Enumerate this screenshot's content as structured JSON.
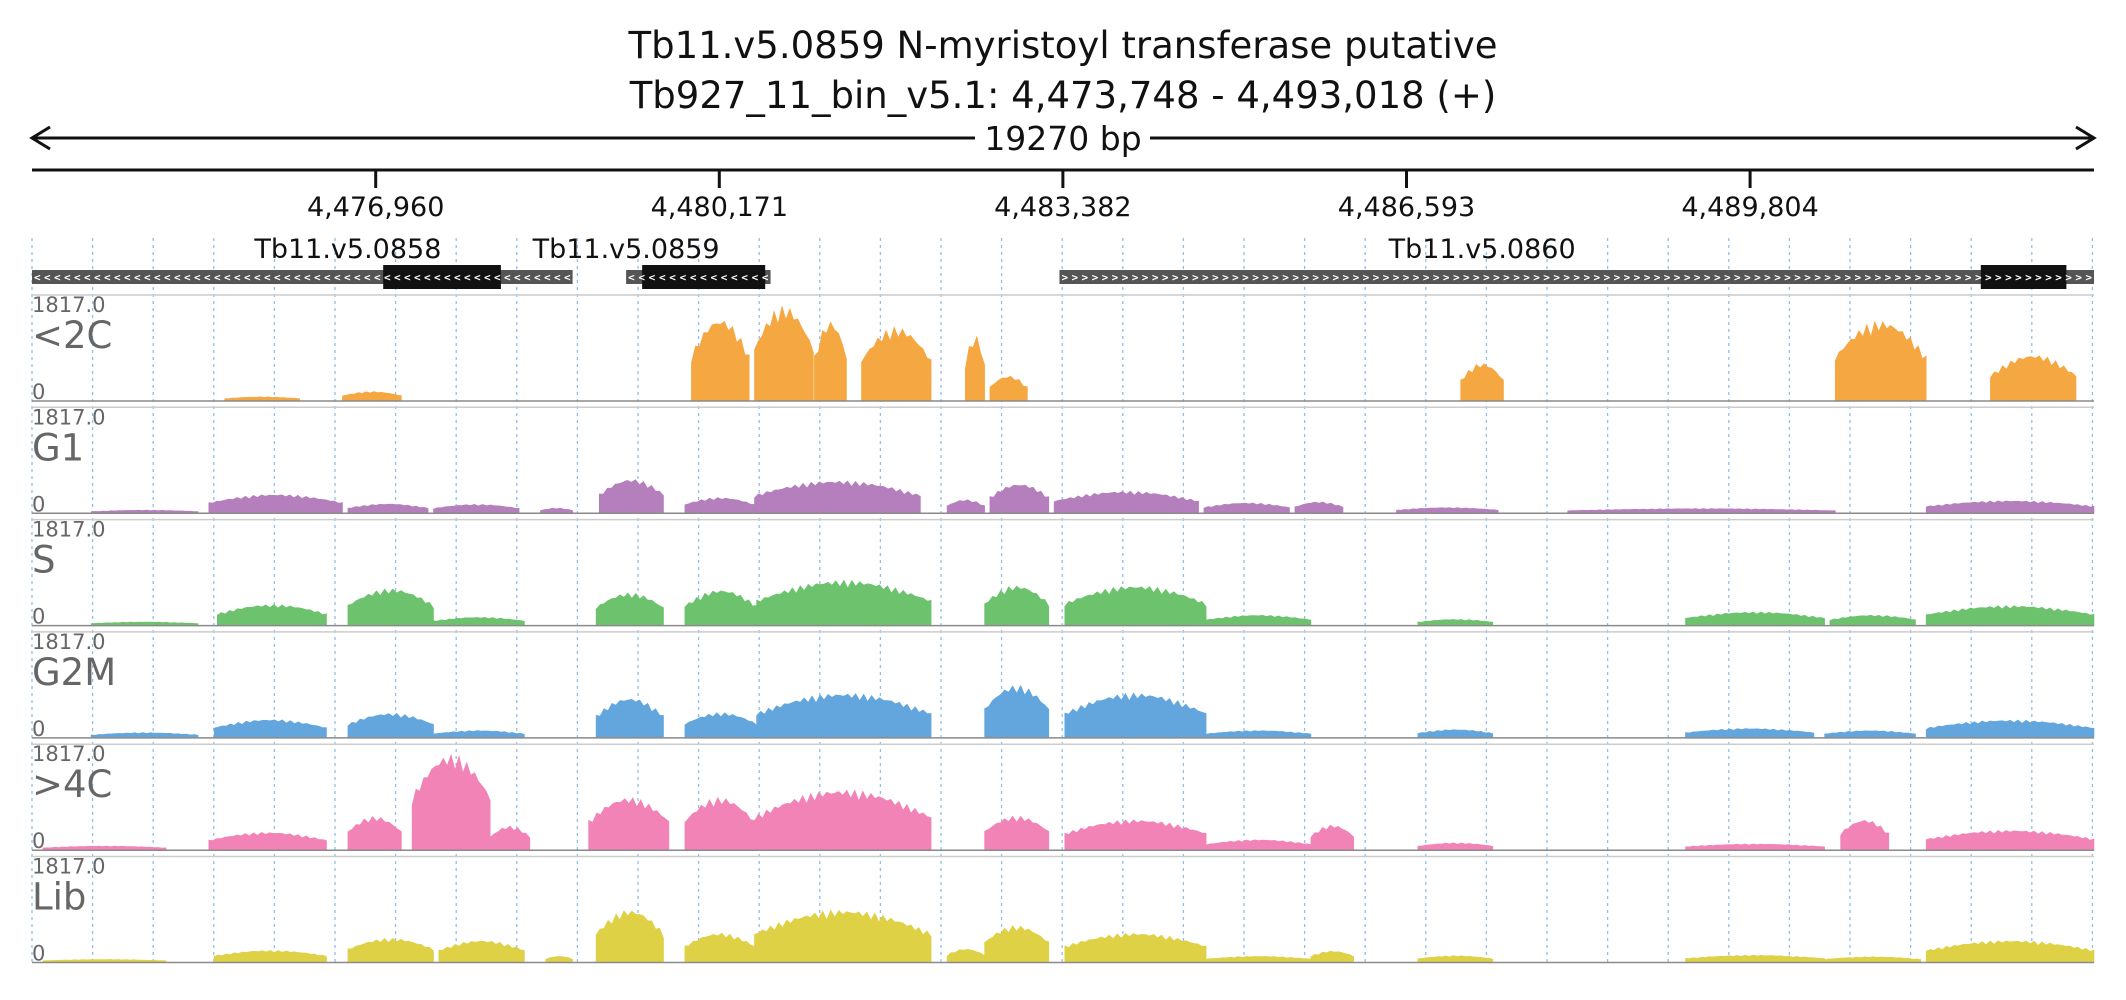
{
  "chart_data": {
    "type": "area",
    "title": "Tb11.v5.0859  N-myristoyl transferase  putative",
    "subtitle": "Tb927_11_bin_v5.1: 4,473,748 - 4,493,018 (+)",
    "span_label": "19270 bp",
    "xlim": [
      4473748,
      4493018
    ],
    "ticks": [
      {
        "value": 4476960,
        "label": "4,476,960"
      },
      {
        "value": 4480171,
        "label": "4,480,171"
      },
      {
        "value": 4483382,
        "label": "4,483,382"
      },
      {
        "value": 4486593,
        "label": "4,486,593"
      },
      {
        "value": 4489804,
        "label": "4,489,804"
      }
    ],
    "genes": [
      {
        "name": "Tb11.v5.0858",
        "label_at": 4476700,
        "strand": "-",
        "start": 4473748,
        "end": 4478800,
        "cds": [
          4477030,
          4478130
        ]
      },
      {
        "name": "Tb11.v5.0859",
        "label_at": 4479300,
        "strand": "-",
        "start": 4479300,
        "end": 4480650,
        "cds": [
          4479450,
          4480600
        ]
      },
      {
        "name": "Tb11.v5.0860",
        "label_at": 4487300,
        "strand": "+",
        "start": 4483350,
        "end": 4493018,
        "cds": [
          4491960,
          4492760
        ]
      }
    ],
    "ylim": [
      0,
      1817.0
    ],
    "y_max_label": "1817.0",
    "y_min_label": "0",
    "series": [
      {
        "name": "<2C",
        "color": "#F5A742",
        "segments": [
          {
            "start": 4475550,
            "end": 4476250,
            "peak": 80
          },
          {
            "start": 4476650,
            "end": 4477200,
            "peak": 180
          },
          {
            "start": 4479910,
            "end": 4480450,
            "peak": 1560
          },
          {
            "start": 4480500,
            "end": 4481050,
            "peak": 1800
          },
          {
            "start": 4481060,
            "end": 4481360,
            "peak": 1520
          },
          {
            "start": 4481500,
            "end": 4482150,
            "peak": 1400
          },
          {
            "start": 4482470,
            "end": 4482650,
            "peak": 1250
          },
          {
            "start": 4482700,
            "end": 4483050,
            "peak": 480
          },
          {
            "start": 4487100,
            "end": 4487500,
            "peak": 720
          },
          {
            "start": 4490600,
            "end": 4491450,
            "peak": 1520
          },
          {
            "start": 4492050,
            "end": 4492850,
            "peak": 880
          }
        ]
      },
      {
        "name": "G1",
        "color": "#B57EBC",
        "segments": [
          {
            "start": 4474300,
            "end": 4475300,
            "peak": 60
          },
          {
            "start": 4475400,
            "end": 4476650,
            "peak": 360
          },
          {
            "start": 4476700,
            "end": 4477450,
            "peak": 180
          },
          {
            "start": 4477500,
            "end": 4478300,
            "peak": 170
          },
          {
            "start": 4478500,
            "end": 4478800,
            "peak": 100
          },
          {
            "start": 4479050,
            "end": 4479650,
            "peak": 650
          },
          {
            "start": 4479850,
            "end": 4480500,
            "peak": 300
          },
          {
            "start": 4480500,
            "end": 4482050,
            "peak": 620
          },
          {
            "start": 4482300,
            "end": 4482650,
            "peak": 260
          },
          {
            "start": 4482700,
            "end": 4483250,
            "peak": 560
          },
          {
            "start": 4483300,
            "end": 4484650,
            "peak": 420
          },
          {
            "start": 4484700,
            "end": 4485500,
            "peak": 200
          },
          {
            "start": 4485550,
            "end": 4486000,
            "peak": 220
          },
          {
            "start": 4486500,
            "end": 4487450,
            "peak": 110
          },
          {
            "start": 4488100,
            "end": 4490600,
            "peak": 90
          },
          {
            "start": 4491450,
            "end": 4493018,
            "peak": 240
          }
        ]
      },
      {
        "name": "S",
        "color": "#6CC26D",
        "segments": [
          {
            "start": 4474300,
            "end": 4475300,
            "peak": 70
          },
          {
            "start": 4475480,
            "end": 4476500,
            "peak": 400
          },
          {
            "start": 4476700,
            "end": 4477500,
            "peak": 700
          },
          {
            "start": 4477500,
            "end": 4478350,
            "peak": 160
          },
          {
            "start": 4479020,
            "end": 4479650,
            "peak": 620
          },
          {
            "start": 4479850,
            "end": 4480520,
            "peak": 680
          },
          {
            "start": 4480520,
            "end": 4482150,
            "peak": 860
          },
          {
            "start": 4482650,
            "end": 4483250,
            "peak": 760
          },
          {
            "start": 4483400,
            "end": 4484720,
            "peak": 760
          },
          {
            "start": 4484720,
            "end": 4485700,
            "peak": 200
          },
          {
            "start": 4486700,
            "end": 4487400,
            "peak": 120
          },
          {
            "start": 4489200,
            "end": 4490500,
            "peak": 260
          },
          {
            "start": 4490550,
            "end": 4491350,
            "peak": 200
          },
          {
            "start": 4491450,
            "end": 4493018,
            "peak": 380
          }
        ]
      },
      {
        "name": "G2M",
        "color": "#62A6DD",
        "segments": [
          {
            "start": 4474300,
            "end": 4475300,
            "peak": 100
          },
          {
            "start": 4475450,
            "end": 4476500,
            "peak": 350
          },
          {
            "start": 4476700,
            "end": 4477500,
            "peak": 470
          },
          {
            "start": 4477500,
            "end": 4478350,
            "peak": 140
          },
          {
            "start": 4479020,
            "end": 4479650,
            "peak": 760
          },
          {
            "start": 4479850,
            "end": 4480520,
            "peak": 480
          },
          {
            "start": 4480520,
            "end": 4482150,
            "peak": 850
          },
          {
            "start": 4482650,
            "end": 4483250,
            "peak": 1000
          },
          {
            "start": 4483400,
            "end": 4484720,
            "peak": 850
          },
          {
            "start": 4484720,
            "end": 4485700,
            "peak": 140
          },
          {
            "start": 4486700,
            "end": 4487400,
            "peak": 160
          },
          {
            "start": 4489200,
            "end": 4490400,
            "peak": 180
          },
          {
            "start": 4490500,
            "end": 4491350,
            "peak": 140
          },
          {
            "start": 4491450,
            "end": 4493018,
            "peak": 340
          }
        ]
      },
      {
        "name": ">4C",
        "color": "#F183B7",
        "segments": [
          {
            "start": 4473850,
            "end": 4475000,
            "peak": 80
          },
          {
            "start": 4475400,
            "end": 4476500,
            "peak": 340
          },
          {
            "start": 4476700,
            "end": 4477200,
            "peak": 640
          },
          {
            "start": 4477300,
            "end": 4478030,
            "peak": 1817
          },
          {
            "start": 4478030,
            "end": 4478400,
            "peak": 460
          },
          {
            "start": 4478950,
            "end": 4479700,
            "peak": 1000
          },
          {
            "start": 4479850,
            "end": 4480500,
            "peak": 1000
          },
          {
            "start": 4480500,
            "end": 4482150,
            "peak": 1150
          },
          {
            "start": 4482650,
            "end": 4483250,
            "peak": 650
          },
          {
            "start": 4483400,
            "end": 4484720,
            "peak": 580
          },
          {
            "start": 4484720,
            "end": 4485700,
            "peak": 200
          },
          {
            "start": 4485700,
            "end": 4486100,
            "peak": 480
          },
          {
            "start": 4486700,
            "end": 4487400,
            "peak": 140
          },
          {
            "start": 4489200,
            "end": 4490500,
            "peak": 120
          },
          {
            "start": 4490650,
            "end": 4491100,
            "peak": 580
          },
          {
            "start": 4491450,
            "end": 4493018,
            "peak": 380
          }
        ]
      },
      {
        "name": "Lib",
        "color": "#DED146",
        "segments": [
          {
            "start": 4473850,
            "end": 4475000,
            "peak": 60
          },
          {
            "start": 4475450,
            "end": 4476500,
            "peak": 230
          },
          {
            "start": 4476700,
            "end": 4477500,
            "peak": 460
          },
          {
            "start": 4477550,
            "end": 4478350,
            "peak": 420
          },
          {
            "start": 4478550,
            "end": 4478800,
            "peak": 120
          },
          {
            "start": 4479020,
            "end": 4479650,
            "peak": 1000
          },
          {
            "start": 4479850,
            "end": 4480500,
            "peak": 560
          },
          {
            "start": 4480500,
            "end": 4482150,
            "peak": 1000
          },
          {
            "start": 4482300,
            "end": 4482650,
            "peak": 260
          },
          {
            "start": 4482650,
            "end": 4483250,
            "peak": 700
          },
          {
            "start": 4483400,
            "end": 4484720,
            "peak": 560
          },
          {
            "start": 4484720,
            "end": 4485700,
            "peak": 120
          },
          {
            "start": 4485700,
            "end": 4486100,
            "peak": 220
          },
          {
            "start": 4486700,
            "end": 4487400,
            "peak": 130
          },
          {
            "start": 4489200,
            "end": 4490500,
            "peak": 140
          },
          {
            "start": 4490500,
            "end": 4491400,
            "peak": 110
          },
          {
            "start": 4491450,
            "end": 4493018,
            "peak": 420
          }
        ]
      }
    ]
  }
}
